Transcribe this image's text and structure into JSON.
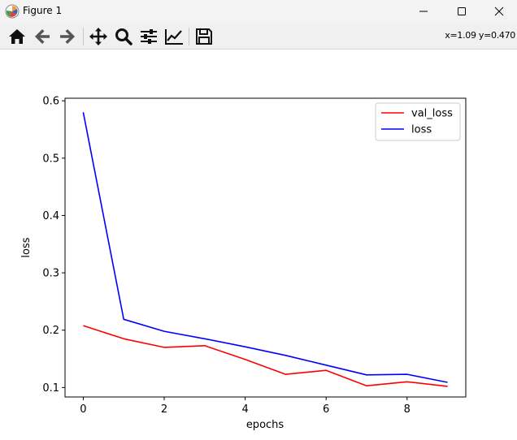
{
  "window": {
    "title": "Figure 1"
  },
  "toolbar": {
    "tools": [
      {
        "name": "home",
        "icon": "home-icon"
      },
      {
        "name": "back",
        "icon": "arrow-left-icon"
      },
      {
        "name": "forward",
        "icon": "arrow-right-icon"
      },
      {
        "name": "pan",
        "icon": "move-icon"
      },
      {
        "name": "zoom",
        "icon": "magnifier-icon"
      },
      {
        "name": "subplots",
        "icon": "sliders-icon"
      },
      {
        "name": "customize",
        "icon": "line-chart-icon"
      },
      {
        "name": "save",
        "icon": "floppy-disk-icon"
      }
    ],
    "coordinates": "x=1.09 y=0.470"
  },
  "colors": {
    "val_loss": "#ff0000",
    "loss": "#0000ff"
  },
  "chart_data": {
    "type": "line",
    "x": [
      0,
      1,
      2,
      3,
      4,
      5,
      6,
      7,
      8,
      9
    ],
    "series": [
      {
        "name": "val_loss",
        "color": "#ff0000",
        "values": [
          0.208,
          0.185,
          0.17,
          0.173,
          0.149,
          0.123,
          0.13,
          0.103,
          0.11,
          0.102
        ]
      },
      {
        "name": "loss",
        "color": "#0000ff",
        "values": [
          0.58,
          0.219,
          0.198,
          0.185,
          0.171,
          0.156,
          0.139,
          0.122,
          0.123,
          0.109
        ]
      }
    ],
    "xlabel": "epochs",
    "ylabel": "loss",
    "xlim": [
      -0.45,
      9.45
    ],
    "ylim": [
      0.0835,
      0.6045
    ],
    "xticks": [
      0,
      2,
      4,
      6,
      8
    ],
    "yticks": [
      0.1,
      0.2,
      0.3,
      0.4,
      0.5,
      0.6
    ],
    "xtick_labels": [
      "0",
      "2",
      "4",
      "6",
      "8"
    ],
    "ytick_labels": [
      "0.1",
      "0.2",
      "0.3",
      "0.4",
      "0.5",
      "0.6"
    ],
    "grid": false,
    "legend": "upper right"
  }
}
